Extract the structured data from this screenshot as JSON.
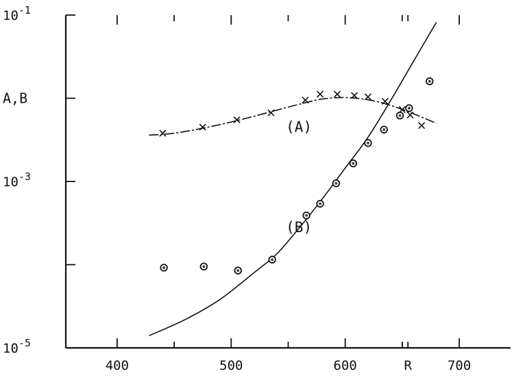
{
  "chart_data": {
    "type": "scatter",
    "title": "",
    "xlabel": "",
    "ylabel": "A,B",
    "xlim": [
      355,
      745
    ],
    "ylim": [
      1e-05,
      0.1
    ],
    "y_scale": "log",
    "grid": false,
    "x_ticks": [
      {
        "value": 400,
        "label": "400"
      },
      {
        "value": 500,
        "label": "500"
      },
      {
        "value": 600,
        "label": "600"
      },
      {
        "value": 700,
        "label": "700"
      }
    ],
    "x_marker": {
      "value": 655,
      "label": "R"
    },
    "y_ticks": [
      {
        "value": 0.1,
        "base": "10",
        "exp": "-1"
      },
      {
        "value": 0.001,
        "base": "10",
        "exp": "-3"
      },
      {
        "value": 1e-05,
        "base": "10",
        "exp": "-5"
      }
    ],
    "series": [
      {
        "label": "(A)",
        "marker": "x",
        "x": [
          440,
          475,
          505,
          535,
          565,
          578,
          593,
          608,
          620,
          635,
          650,
          657,
          667
        ],
        "y": [
          0.0038,
          0.0045,
          0.0055,
          0.0067,
          0.0095,
          0.0112,
          0.0112,
          0.0108,
          0.0104,
          0.0092,
          0.0073,
          0.0063,
          0.0047
        ],
        "curve_x": [
          428,
          450,
          480,
          510,
          540,
          560,
          580,
          600,
          620,
          640,
          660,
          680
        ],
        "curve_y": [
          0.0036,
          0.0038,
          0.0045,
          0.0056,
          0.0072,
          0.0085,
          0.0098,
          0.0102,
          0.0096,
          0.0082,
          0.0065,
          0.005
        ],
        "label_at": [
          548,
          0.0045
        ]
      },
      {
        "label": "(B)",
        "marker": "circle",
        "x": [
          441,
          476,
          506,
          536,
          566,
          578,
          592,
          607,
          620,
          634,
          648,
          656,
          674
        ],
        "y": [
          9.2e-05,
          9.5e-05,
          8.5e-05,
          0.000115,
          0.00039,
          0.00054,
          0.00095,
          0.00165,
          0.0029,
          0.0042,
          0.0062,
          0.0076,
          0.016
        ],
        "curve_x": [
          428,
          460,
          490,
          520,
          540,
          560,
          580,
          600,
          620,
          640,
          660,
          680
        ],
        "curve_y": [
          1.4e-05,
          2.2e-05,
          3.8e-05,
          8e-05,
          0.000135,
          0.00028,
          0.00062,
          0.00145,
          0.0034,
          0.0095,
          0.028,
          0.082
        ],
        "label_at": [
          548,
          0.00028
        ]
      }
    ]
  }
}
